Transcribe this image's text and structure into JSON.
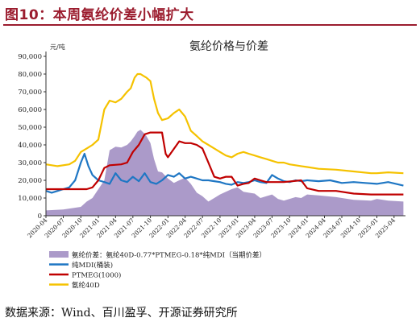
{
  "figure": {
    "title": "图10：本周氨纶价差小幅扩大",
    "source": "数据来源：Wind、百川盈孚、开源证券研究所"
  },
  "chart_data": {
    "type": "line",
    "title": "氨纶价格与价差",
    "unit_label": "元/吨",
    "ylim": [
      0,
      90000
    ],
    "yticks": [
      0,
      10000,
      20000,
      30000,
      40000,
      50000,
      60000,
      70000,
      80000,
      90000
    ],
    "xlim": [
      "2020-04-01",
      "2025-05-31"
    ],
    "xticks": [
      "2020-04",
      "2020-07",
      "2020-10",
      "2021-01",
      "2021-04",
      "2021-07",
      "2021-10",
      "2022-01",
      "2022-04",
      "2022-07",
      "2022-10",
      "2023-01",
      "2023-04",
      "2023-07",
      "2023-10",
      "2024-01",
      "2024-04",
      "2024-07",
      "2024-10",
      "2025-01",
      "2025-04"
    ],
    "grid": false,
    "legend_position": "bottom-left",
    "colors": {
      "spread": "#ab9ac9",
      "mdi": "#1f77c4",
      "ptmeg": "#c00000",
      "spandex": "#f5c200"
    },
    "series": [
      {
        "name": "氨纶价差：氨纶40D-0.77*PTMEG-0.18*纯MDI（当期价差）",
        "kind": "area",
        "color_key": "spread",
        "x": [
          "2020-04-01",
          "2020-07-01",
          "2020-10-01",
          "2020-11-01",
          "2020-12-01",
          "2021-01-01",
          "2021-02-01",
          "2021-03-01",
          "2021-04-01",
          "2021-05-01",
          "2021-06-01",
          "2021-06-20",
          "2021-07-10",
          "2021-07-25",
          "2021-08-10",
          "2021-08-25",
          "2021-09-10",
          "2021-10-01",
          "2021-10-20",
          "2021-11-10",
          "2021-12-01",
          "2022-01-01",
          "2022-02-01",
          "2022-03-01",
          "2022-04-01",
          "2022-05-01",
          "2022-06-01",
          "2022-07-01",
          "2022-08-01",
          "2022-09-01",
          "2022-10-01",
          "2022-11-01",
          "2022-12-01",
          "2023-01-01",
          "2023-02-01",
          "2023-03-01",
          "2023-04-01",
          "2023-05-01",
          "2023-06-01",
          "2023-07-01",
          "2023-08-01",
          "2023-09-01",
          "2023-10-01",
          "2023-11-01",
          "2023-12-01",
          "2024-01-01",
          "2024-03-01",
          "2024-06-01",
          "2024-09-01",
          "2024-12-01",
          "2025-01-01",
          "2025-03-01",
          "2025-05-20"
        ],
        "y": [
          3000,
          3500,
          5000,
          8000,
          10000,
          15000,
          20000,
          37000,
          39000,
          38500,
          40000,
          42000,
          45000,
          47500,
          48500,
          47000,
          45000,
          41000,
          32000,
          25000,
          24500,
          21000,
          18500,
          20000,
          21500,
          18000,
          13000,
          11000,
          8000,
          10000,
          12000,
          13500,
          15000,
          16000,
          13500,
          13000,
          12500,
          10000,
          11000,
          12000,
          9500,
          8500,
          9500,
          10500,
          10000,
          12000,
          11500,
          10500,
          9000,
          8500,
          9500,
          8500,
          8000
        ]
      },
      {
        "name": "纯MDI(桶装)",
        "kind": "line",
        "color_key": "mdi",
        "x": [
          "2020-04-01",
          "2020-05-01",
          "2020-06-01",
          "2020-07-01",
          "2020-08-01",
          "2020-09-01",
          "2020-10-01",
          "2020-10-20",
          "2020-11-10",
          "2020-12-01",
          "2021-01-01",
          "2021-02-01",
          "2021-03-01",
          "2021-04-01",
          "2021-05-01",
          "2021-06-01",
          "2021-07-01",
          "2021-08-01",
          "2021-09-01",
          "2021-10-01",
          "2021-11-01",
          "2021-12-01",
          "2022-01-01",
          "2022-02-01",
          "2022-03-01",
          "2022-04-01",
          "2022-05-01",
          "2022-06-01",
          "2022-07-01",
          "2022-08-01",
          "2022-09-01",
          "2022-10-01",
          "2022-11-01",
          "2022-12-01",
          "2023-01-01",
          "2023-02-01",
          "2023-03-01",
          "2023-04-01",
          "2023-05-01",
          "2023-06-01",
          "2023-07-01",
          "2023-08-01",
          "2023-09-01",
          "2023-10-01",
          "2023-11-01",
          "2023-12-01",
          "2024-01-01",
          "2024-03-01",
          "2024-05-01",
          "2024-07-01",
          "2024-09-01",
          "2024-11-01",
          "2025-01-01",
          "2025-03-01",
          "2025-05-20"
        ],
        "y": [
          14000,
          13000,
          14000,
          15000,
          16000,
          20000,
          30000,
          35000,
          28000,
          23000,
          20000,
          19000,
          18000,
          24000,
          20000,
          19000,
          22000,
          19500,
          24000,
          19000,
          18000,
          20000,
          23000,
          22000,
          24000,
          21000,
          22000,
          21000,
          20000,
          20000,
          19500,
          19000,
          18000,
          17500,
          19000,
          18500,
          19000,
          20000,
          19000,
          18500,
          23000,
          21000,
          19500,
          19000,
          20000,
          19500,
          20000,
          19500,
          20000,
          18500,
          19000,
          18500,
          18000,
          19000,
          17000
        ]
      },
      {
        "name": "PTMEG(1000)",
        "kind": "line",
        "color_key": "ptmeg",
        "x": [
          "2020-04-01",
          "2020-09-01",
          "2020-11-01",
          "2020-12-01",
          "2021-01-01",
          "2021-02-01",
          "2021-03-01",
          "2021-05-01",
          "2021-06-01",
          "2021-07-01",
          "2021-08-01",
          "2021-09-01",
          "2021-10-01",
          "2021-11-01",
          "2021-12-01",
          "2021-12-20",
          "2022-01-01",
          "2022-03-01",
          "2022-04-01",
          "2022-05-01",
          "2022-06-01",
          "2022-07-01",
          "2022-08-01",
          "2022-09-01",
          "2022-10-01",
          "2022-11-01",
          "2022-12-01",
          "2023-01-01",
          "2023-02-01",
          "2023-03-01",
          "2023-04-01",
          "2023-05-01",
          "2023-06-01",
          "2023-09-01",
          "2023-12-01",
          "2024-01-01",
          "2024-03-01",
          "2024-06-01",
          "2024-09-01",
          "2024-12-01",
          "2025-03-01",
          "2025-05-20"
        ],
        "y": [
          15000,
          15000,
          15000,
          16000,
          20000,
          27000,
          28500,
          29000,
          30000,
          36000,
          40000,
          46000,
          47000,
          47000,
          47000,
          35000,
          33000,
          42000,
          41000,
          41000,
          40000,
          38000,
          30000,
          22000,
          21000,
          22000,
          22000,
          17000,
          18000,
          18500,
          21000,
          20000,
          19000,
          19000,
          20000,
          15500,
          14000,
          14000,
          12500,
          12000,
          12000,
          12000
        ]
      },
      {
        "name": "氨纶40D",
        "kind": "line",
        "color_key": "spandex",
        "x": [
          "2020-04-01",
          "2020-06-01",
          "2020-08-01",
          "2020-09-01",
          "2020-10-01",
          "2020-11-01",
          "2020-12-01",
          "2021-01-01",
          "2021-02-01",
          "2021-03-01",
          "2021-04-01",
          "2021-05-01",
          "2021-06-01",
          "2021-06-20",
          "2021-07-10",
          "2021-07-25",
          "2021-08-10",
          "2021-08-25",
          "2021-09-10",
          "2021-10-01",
          "2021-10-20",
          "2021-11-10",
          "2021-12-01",
          "2022-01-01",
          "2022-02-01",
          "2022-03-01",
          "2022-04-01",
          "2022-05-01",
          "2022-06-01",
          "2022-07-01",
          "2022-08-01",
          "2022-09-01",
          "2022-10-01",
          "2022-11-01",
          "2022-12-01",
          "2023-01-01",
          "2023-02-01",
          "2023-03-01",
          "2023-04-01",
          "2023-05-01",
          "2023-06-01",
          "2023-07-01",
          "2023-08-01",
          "2023-09-01",
          "2023-10-01",
          "2023-11-01",
          "2023-12-01",
          "2024-01-01",
          "2024-03-01",
          "2024-06-01",
          "2024-09-01",
          "2024-12-01",
          "2025-01-01",
          "2025-03-01",
          "2025-05-20"
        ],
        "y": [
          29000,
          28000,
          29000,
          31000,
          36000,
          38000,
          40000,
          43000,
          60000,
          65000,
          64000,
          66000,
          70000,
          72000,
          78000,
          80000,
          80000,
          79000,
          78000,
          76000,
          66000,
          58000,
          54000,
          55000,
          58000,
          60000,
          56000,
          48000,
          45000,
          42000,
          40000,
          38000,
          36000,
          34000,
          33000,
          35000,
          36000,
          35000,
          34000,
          33000,
          32000,
          31000,
          30000,
          30000,
          29000,
          28500,
          28000,
          27500,
          26500,
          26000,
          25000,
          24000,
          24000,
          24500,
          24000
        ]
      }
    ]
  }
}
